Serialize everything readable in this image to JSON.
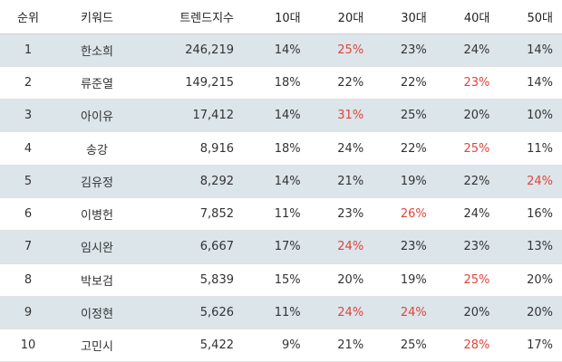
{
  "columns": {
    "rank": "순위",
    "keyword": "키워드",
    "trend": "트렌드지수",
    "age10": "10대",
    "age20": "20대",
    "age30": "30대",
    "age40": "40대",
    "age50": "50대"
  },
  "highlight_color": "#e0453b",
  "row_stripe_color": "#dbe5ea",
  "rows": [
    {
      "rank": "1",
      "keyword": "한소희",
      "trend": "246,219",
      "age10": "14%",
      "age20": "25%",
      "age30": "23%",
      "age40": "24%",
      "age50": "14%",
      "highlight": "age20"
    },
    {
      "rank": "2",
      "keyword": "류준열",
      "trend": "149,215",
      "age10": "18%",
      "age20": "22%",
      "age30": "22%",
      "age40": "23%",
      "age50": "14%",
      "highlight": "age40"
    },
    {
      "rank": "3",
      "keyword": "아이유",
      "trend": "17,412",
      "age10": "14%",
      "age20": "31%",
      "age30": "25%",
      "age40": "20%",
      "age50": "10%",
      "highlight": "age20"
    },
    {
      "rank": "4",
      "keyword": "송강",
      "trend": "8,916",
      "age10": "18%",
      "age20": "24%",
      "age30": "22%",
      "age40": "25%",
      "age50": "11%",
      "highlight": "age40"
    },
    {
      "rank": "5",
      "keyword": "김유정",
      "trend": "8,292",
      "age10": "14%",
      "age20": "21%",
      "age30": "19%",
      "age40": "22%",
      "age50": "24%",
      "highlight": "age50"
    },
    {
      "rank": "6",
      "keyword": "이병헌",
      "trend": "7,852",
      "age10": "11%",
      "age20": "23%",
      "age30": "26%",
      "age40": "24%",
      "age50": "16%",
      "highlight": "age30"
    },
    {
      "rank": "7",
      "keyword": "임시완",
      "trend": "6,667",
      "age10": "17%",
      "age20": "24%",
      "age30": "23%",
      "age40": "23%",
      "age50": "13%",
      "highlight": "age20"
    },
    {
      "rank": "8",
      "keyword": "박보검",
      "trend": "5,839",
      "age10": "15%",
      "age20": "20%",
      "age30": "19%",
      "age40": "25%",
      "age50": "20%",
      "highlight": "age40"
    },
    {
      "rank": "9",
      "keyword": "이정현",
      "trend": "5,626",
      "age10": "11%",
      "age20": "24%",
      "age30": "24%",
      "age40": "20%",
      "age50": "20%",
      "highlight": [
        "age20",
        "age30"
      ]
    },
    {
      "rank": "10",
      "keyword": "고민시",
      "trend": "5,422",
      "age10": "9%",
      "age20": "21%",
      "age30": "25%",
      "age40": "28%",
      "age50": "17%",
      "highlight": "age40"
    }
  ]
}
